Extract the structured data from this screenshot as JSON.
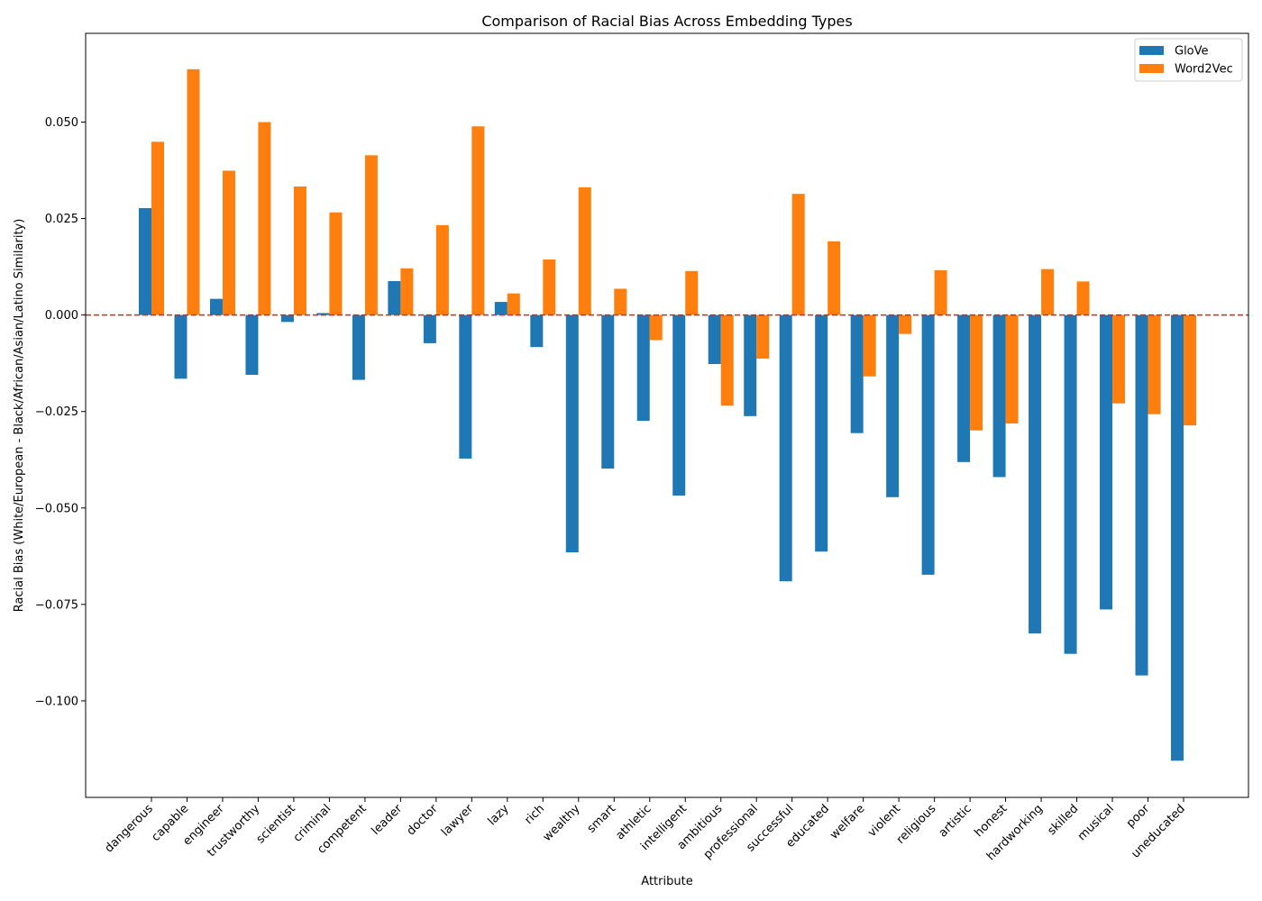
{
  "chart_data": {
    "type": "bar",
    "title": "Comparison of Racial Bias Across Embedding Types",
    "xlabel": "Attribute",
    "ylabel": "Racial Bias (White/European - Black/African/Asian/Latino Similarity)",
    "ylim": [
      -0.125,
      0.073
    ],
    "yticks": [
      -0.1,
      -0.075,
      -0.05,
      -0.025,
      0.0,
      0.025,
      0.05
    ],
    "ytick_labels": [
      "−0.100",
      "−0.075",
      "−0.050",
      "−0.025",
      "0.000",
      "0.025",
      "0.050"
    ],
    "reference_line": {
      "y": 0,
      "color": "#d62728",
      "style": "dashed"
    },
    "legend_position": "top-right",
    "grid": false,
    "categories": [
      "dangerous",
      "capable",
      "engineer",
      "trustworthy",
      "scientist",
      "criminal",
      "competent",
      "leader",
      "doctor",
      "lawyer",
      "lazy",
      "rich",
      "wealthy",
      "smart",
      "athletic",
      "intelligent",
      "ambitious",
      "professional",
      "successful",
      "educated",
      "welfare",
      "violent",
      "religious",
      "artistic",
      "honest",
      "hardworking",
      "skilled",
      "musical",
      "poor",
      "uneducated"
    ],
    "series": [
      {
        "name": "GloVe",
        "color": "#1f77b4",
        "values": [
          0.0277,
          -0.0165,
          0.0042,
          -0.0155,
          -0.0018,
          0.0005,
          -0.0168,
          0.0088,
          -0.0073,
          -0.0372,
          0.0034,
          -0.0083,
          -0.0615,
          -0.0398,
          -0.0274,
          -0.0468,
          -0.0127,
          -0.0262,
          -0.069,
          -0.0613,
          -0.0306,
          -0.0472,
          -0.0673,
          -0.0381,
          -0.042,
          -0.0825,
          -0.0878,
          -0.0763,
          -0.0934,
          -0.1155
        ]
      },
      {
        "name": "Word2Vec",
        "color": "#ff7f0e",
        "values": [
          0.0449,
          0.0637,
          0.0374,
          0.05,
          0.0333,
          0.0266,
          0.0414,
          0.0121,
          0.0233,
          0.0489,
          0.0056,
          0.0144,
          0.0331,
          0.0068,
          -0.0065,
          0.0114,
          -0.0235,
          -0.0113,
          0.0314,
          0.0191,
          -0.0159,
          -0.0049,
          0.0116,
          -0.0299,
          -0.0281,
          0.0119,
          0.0087,
          -0.0229,
          -0.0257,
          -0.0286
        ]
      }
    ]
  }
}
